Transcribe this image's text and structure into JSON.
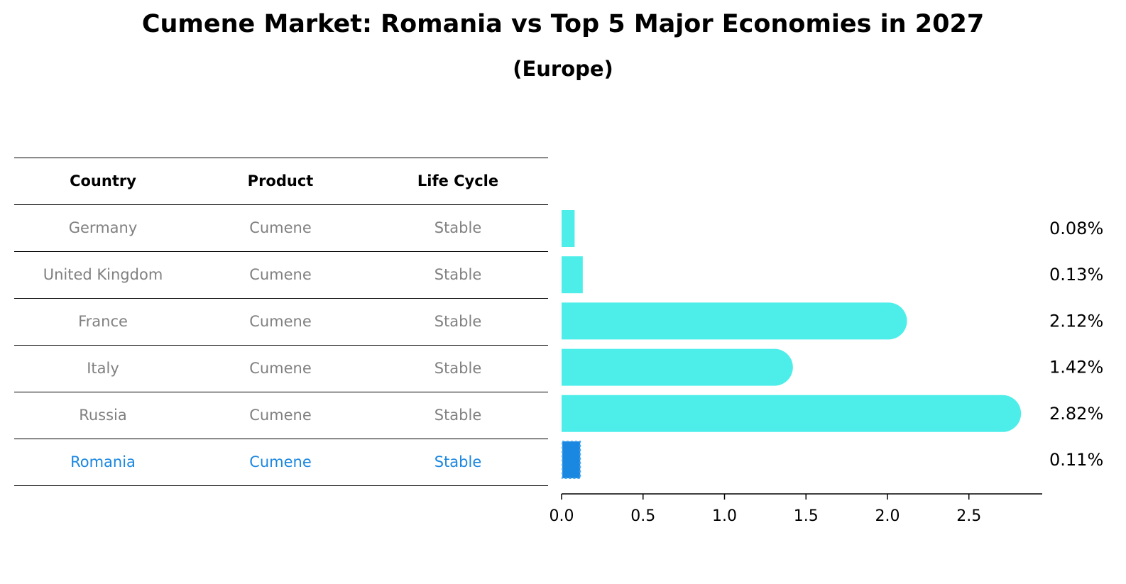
{
  "title": "Cumene Market: Romania vs Top 5 Major Economies in 2027",
  "subtitle": "(Europe)",
  "table": {
    "headers": [
      "Country",
      "Product",
      "Life Cycle"
    ],
    "rows": [
      [
        "Germany",
        "Cumene",
        "Stable"
      ],
      [
        "United Kingdom",
        "Cumene",
        "Stable"
      ],
      [
        "France",
        "Cumene",
        "Stable"
      ],
      [
        "Italy",
        "Cumene",
        "Stable"
      ],
      [
        "Russia",
        "Cumene",
        "Stable"
      ],
      [
        "Romania",
        "Cumene",
        "Stable"
      ]
    ],
    "highlight_row": 5
  },
  "colors": {
    "bar": "#4deeea",
    "highlight_bar": "#1a87e0",
    "text_muted": "#808080",
    "text_highlight": "#1a87e0"
  },
  "chart_data": {
    "type": "bar",
    "orientation": "horizontal",
    "categories": [
      "Germany",
      "United Kingdom",
      "France",
      "Italy",
      "Russia",
      "Romania"
    ],
    "values": [
      0.08,
      0.13,
      2.12,
      1.42,
      2.82,
      0.11
    ],
    "value_labels": [
      "0.08%",
      "0.13%",
      "2.12%",
      "1.42%",
      "2.82%",
      "0.11%"
    ],
    "xlim": [
      0,
      2.95
    ],
    "xticks": [
      0.0,
      0.5,
      1.0,
      1.5,
      2.0,
      2.5
    ],
    "xtick_labels": [
      "0.0",
      "0.5",
      "1.0",
      "1.5",
      "2.0",
      "2.5"
    ],
    "highlight_index": 5,
    "grid": false
  }
}
